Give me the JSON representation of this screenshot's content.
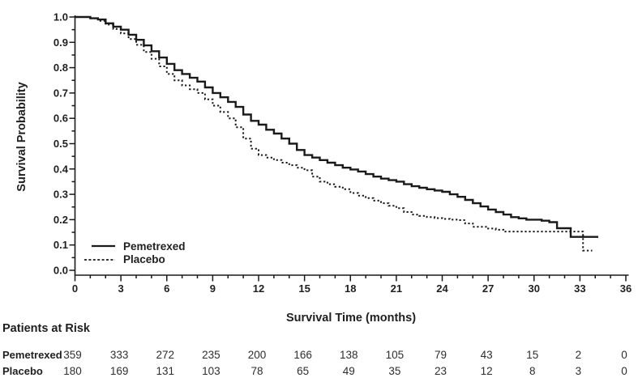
{
  "colors": {
    "curve": "#1a1a1a",
    "text": "#1f1f1f",
    "background": "#ffffff"
  },
  "chart_data": {
    "type": "line",
    "subtype": "kaplan-meier-step",
    "title": "",
    "xlabel": "Survival Time (months)",
    "ylabel": "Survival Probability",
    "xlim": [
      0,
      36
    ],
    "ylim": [
      0.0,
      1.0
    ],
    "x_tick_labels": [
      "0",
      "3",
      "6",
      "9",
      "12",
      "15",
      "18",
      "21",
      "24",
      "27",
      "30",
      "33",
      "36"
    ],
    "x_tick_values": [
      0,
      3,
      6,
      9,
      12,
      15,
      18,
      21,
      24,
      27,
      30,
      33,
      36
    ],
    "x_minor_tick_interval": 1,
    "y_tick_labels": [
      "0.0",
      "0.1",
      "0.2",
      "0.3",
      "0.4",
      "0.5",
      "0.6",
      "0.7",
      "0.8",
      "0.9",
      "1.0"
    ],
    "y_tick_values": [
      0.0,
      0.1,
      0.2,
      0.3,
      0.4,
      0.5,
      0.6,
      0.7,
      0.8,
      0.9,
      1.0
    ],
    "y_minor_tick_interval": 0.05,
    "grid": false,
    "legend_position": "lower-left-inside",
    "series": [
      {
        "name": "Pemetrexed",
        "line_style": "solid",
        "step_points": [
          [
            0,
            1.0
          ],
          [
            0.7,
            1.0
          ],
          [
            1,
            0.995
          ],
          [
            1.5,
            0.99
          ],
          [
            2,
            0.975
          ],
          [
            2.5,
            0.962
          ],
          [
            3,
            0.95
          ],
          [
            3.5,
            0.93
          ],
          [
            4,
            0.91
          ],
          [
            4.5,
            0.888
          ],
          [
            5,
            0.865
          ],
          [
            5.5,
            0.84
          ],
          [
            6,
            0.815
          ],
          [
            6.5,
            0.79
          ],
          [
            7,
            0.775
          ],
          [
            7.5,
            0.76
          ],
          [
            8,
            0.745
          ],
          [
            8.5,
            0.722
          ],
          [
            9,
            0.7
          ],
          [
            9.5,
            0.683
          ],
          [
            10,
            0.665
          ],
          [
            10.5,
            0.645
          ],
          [
            11,
            0.615
          ],
          [
            11.5,
            0.59
          ],
          [
            12,
            0.575
          ],
          [
            12.5,
            0.555
          ],
          [
            13,
            0.54
          ],
          [
            13.5,
            0.52
          ],
          [
            14,
            0.5
          ],
          [
            14.5,
            0.475
          ],
          [
            15,
            0.455
          ],
          [
            15.5,
            0.445
          ],
          [
            16,
            0.435
          ],
          [
            16.5,
            0.425
          ],
          [
            17,
            0.415
          ],
          [
            17.5,
            0.405
          ],
          [
            18,
            0.398
          ],
          [
            18.5,
            0.39
          ],
          [
            19,
            0.38
          ],
          [
            19.5,
            0.37
          ],
          [
            20,
            0.362
          ],
          [
            20.5,
            0.356
          ],
          [
            21,
            0.35
          ],
          [
            21.5,
            0.34
          ],
          [
            22,
            0.332
          ],
          [
            22.5,
            0.326
          ],
          [
            23,
            0.32
          ],
          [
            23.5,
            0.315
          ],
          [
            24,
            0.31
          ],
          [
            24.5,
            0.3
          ],
          [
            25,
            0.29
          ],
          [
            25.5,
            0.278
          ],
          [
            26,
            0.265
          ],
          [
            26.5,
            0.252
          ],
          [
            27,
            0.24
          ],
          [
            27.5,
            0.23
          ],
          [
            28,
            0.22
          ],
          [
            28.5,
            0.21
          ],
          [
            29,
            0.205
          ],
          [
            29.5,
            0.2
          ],
          [
            30.5,
            0.196
          ],
          [
            31,
            0.19
          ],
          [
            31.5,
            0.166
          ],
          [
            32.4,
            0.132
          ],
          [
            34.2,
            0.132
          ]
        ]
      },
      {
        "name": "Placebo",
        "line_style": "dotted",
        "step_points": [
          [
            0,
            1.0
          ],
          [
            0.7,
            1.0
          ],
          [
            1,
            0.995
          ],
          [
            1.5,
            0.985
          ],
          [
            2,
            0.97
          ],
          [
            2.5,
            0.953
          ],
          [
            3,
            0.935
          ],
          [
            3.5,
            0.913
          ],
          [
            4,
            0.89
          ],
          [
            4.5,
            0.862
          ],
          [
            5,
            0.835
          ],
          [
            5.5,
            0.805
          ],
          [
            6,
            0.775
          ],
          [
            6.5,
            0.75
          ],
          [
            7,
            0.73
          ],
          [
            7.5,
            0.715
          ],
          [
            8,
            0.7
          ],
          [
            8.5,
            0.675
          ],
          [
            9,
            0.65
          ],
          [
            9.5,
            0.625
          ],
          [
            10,
            0.6
          ],
          [
            10.5,
            0.565
          ],
          [
            11,
            0.52
          ],
          [
            11.5,
            0.48
          ],
          [
            12,
            0.455
          ],
          [
            12.5,
            0.445
          ],
          [
            13,
            0.435
          ],
          [
            13.5,
            0.425
          ],
          [
            14,
            0.415
          ],
          [
            14.5,
            0.405
          ],
          [
            15,
            0.395
          ],
          [
            15.5,
            0.37
          ],
          [
            16,
            0.35
          ],
          [
            16.5,
            0.34
          ],
          [
            17,
            0.33
          ],
          [
            17.5,
            0.32
          ],
          [
            18,
            0.305
          ],
          [
            18.5,
            0.295
          ],
          [
            19,
            0.285
          ],
          [
            19.5,
            0.275
          ],
          [
            20,
            0.265
          ],
          [
            20.5,
            0.255
          ],
          [
            21,
            0.245
          ],
          [
            21.5,
            0.23
          ],
          [
            22,
            0.22
          ],
          [
            22.5,
            0.215
          ],
          [
            23,
            0.21
          ],
          [
            23.5,
            0.206
          ],
          [
            24,
            0.203
          ],
          [
            24.5,
            0.2
          ],
          [
            25,
            0.198
          ],
          [
            25.5,
            0.185
          ],
          [
            26,
            0.172
          ],
          [
            27,
            0.165
          ],
          [
            27.5,
            0.16
          ],
          [
            28,
            0.153
          ],
          [
            33.2,
            0.153
          ],
          [
            33.2,
            0.078
          ],
          [
            33.8,
            0.078
          ]
        ]
      }
    ],
    "at_risk": {
      "title": "Patients at Risk",
      "timepoints": [
        0,
        3,
        6,
        9,
        12,
        15,
        18,
        21,
        24,
        27,
        30,
        33,
        36
      ],
      "rows": [
        {
          "label": "Pemetrexed",
          "counts": [
            359,
            333,
            272,
            235,
            200,
            166,
            138,
            105,
            79,
            43,
            15,
            2,
            0
          ]
        },
        {
          "label": "Placebo",
          "counts": [
            180,
            169,
            131,
            103,
            78,
            65,
            49,
            35,
            23,
            12,
            8,
            3,
            0
          ]
        }
      ]
    }
  }
}
